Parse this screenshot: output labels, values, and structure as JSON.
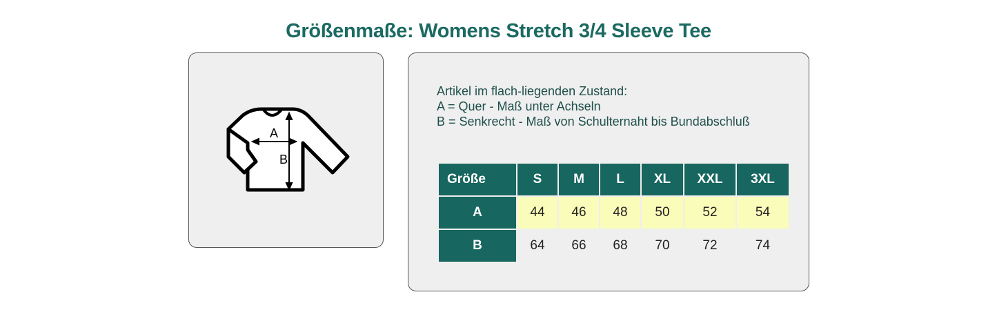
{
  "title": "Größenmaße: Womens Stretch 3/4 Sleeve Tee",
  "illustration": {
    "icon": "long-sleeve-shirt-measurement-icon",
    "label_a": "A",
    "label_b": "B"
  },
  "description": {
    "line1": "Artikel im flach-liegenden Zustand:",
    "line2": "A = Quer - Maß unter Achseln",
    "line3": "B = Senkrecht - Maß von Schulternaht bis Bundabschluß"
  },
  "table": {
    "header": [
      "Größe",
      "S",
      "M",
      "L",
      "XL",
      "XXL",
      "3XL"
    ],
    "rows": [
      {
        "label": "A",
        "values": [
          "44",
          "46",
          "48",
          "50",
          "52",
          "54"
        ]
      },
      {
        "label": "B",
        "values": [
          "64",
          "66",
          "68",
          "70",
          "72",
          "74"
        ]
      }
    ]
  },
  "colors": {
    "header": "#17665f",
    "title": "#1b6a62",
    "highlight_row": "#fafcb9",
    "panel": "#efefef"
  }
}
